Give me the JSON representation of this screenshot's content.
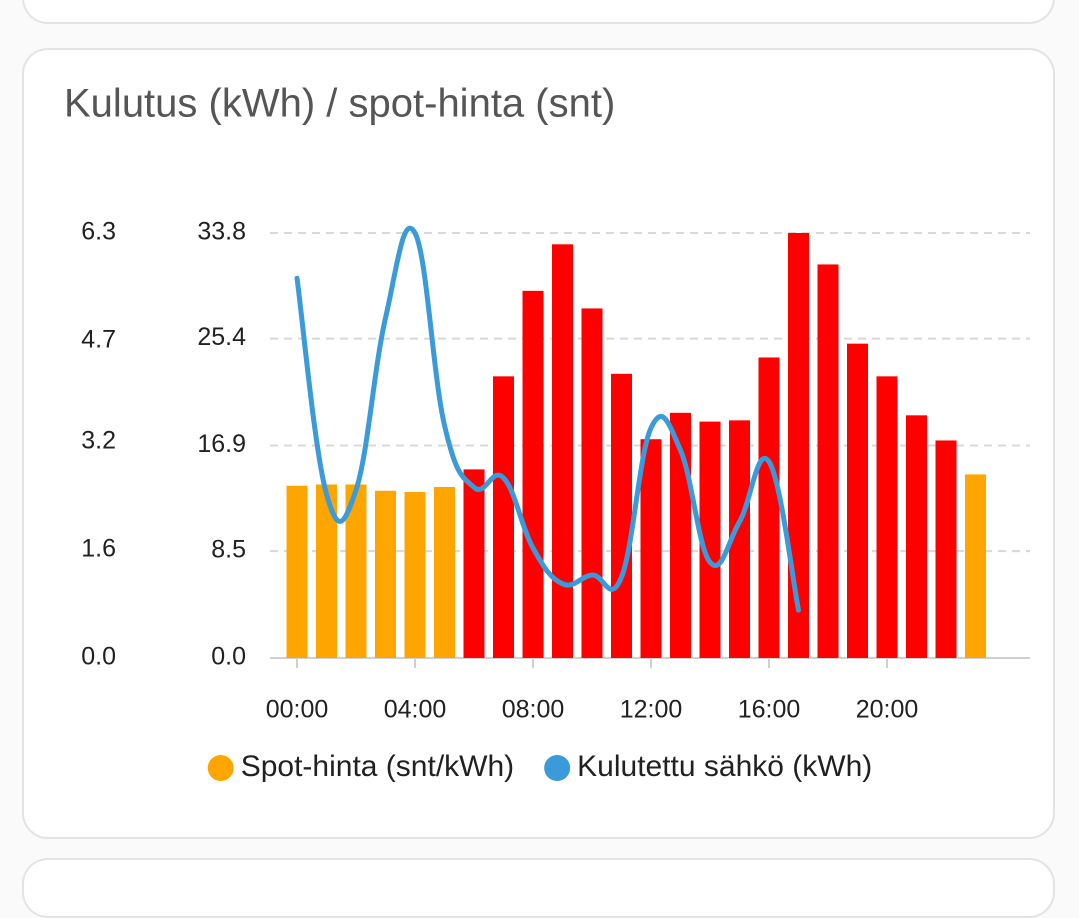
{
  "chart_data": {
    "type": "bar-line",
    "title": "Kulutus (kWh) / spot-hinta (snt)",
    "categories": [
      "00:00",
      null,
      null,
      null,
      "04:00",
      null,
      null,
      null,
      "08:00",
      null,
      null,
      null,
      "12:00",
      null,
      null,
      null,
      "16:00",
      null,
      null,
      null,
      "20:00",
      null,
      null,
      null
    ],
    "ylim": [
      0,
      33.8
    ],
    "yticks": [
      {
        "value": 0,
        "label": "0.0"
      },
      8.5,
      16.9,
      25.4,
      33.8
    ],
    "y2lim": [
      0,
      6.3
    ],
    "y2ticks": [
      {
        "value": 0,
        "label": "0.0"
      },
      1.6,
      3.2,
      4.7,
      6.3
    ],
    "grid": true,
    "series": [
      {
        "name": "Spot-hinta (snt/kWh)",
        "color": "#ffa500",
        "colors": [
          "#ffa500",
          "#ffa500",
          "#ffa500",
          "#ffa500",
          "#ffa500",
          "#ffa500",
          "#ff0000",
          "#ff0000",
          "#ff0000",
          "#ff0000",
          "#ff0000",
          "#ff0000",
          "#ff0000",
          "#ff0000",
          "#ff0000",
          "#ff0000",
          "#ff0000",
          "#ff0000",
          "#ff0000",
          "#ff0000",
          "#ff0000",
          "#ff0000",
          "#ff0000",
          "#ffa500"
        ],
        "values": [
          13.7,
          13.8,
          13.8,
          13.3,
          13.2,
          13.6,
          15.0,
          22.4,
          29.2,
          32.9,
          27.8,
          22.6,
          17.4,
          19.5,
          18.8,
          18.9,
          23.9,
          33.8,
          31.3,
          25.0,
          22.4,
          19.3,
          17.3,
          14.6
        ]
      },
      {
        "name": "Kulutettu sähkö (kWh)",
        "color": "#3b9ad9",
        "axis": "y2",
        "values": [
          5.63,
          2.43,
          2.49,
          5.04,
          6.3,
          3.45,
          2.53,
          2.67,
          1.63,
          1.1,
          1.23,
          1.2,
          3.41,
          3.08,
          1.42,
          2.02,
          2.91,
          0.71,
          null,
          null,
          null,
          null,
          null,
          null
        ]
      }
    ]
  }
}
